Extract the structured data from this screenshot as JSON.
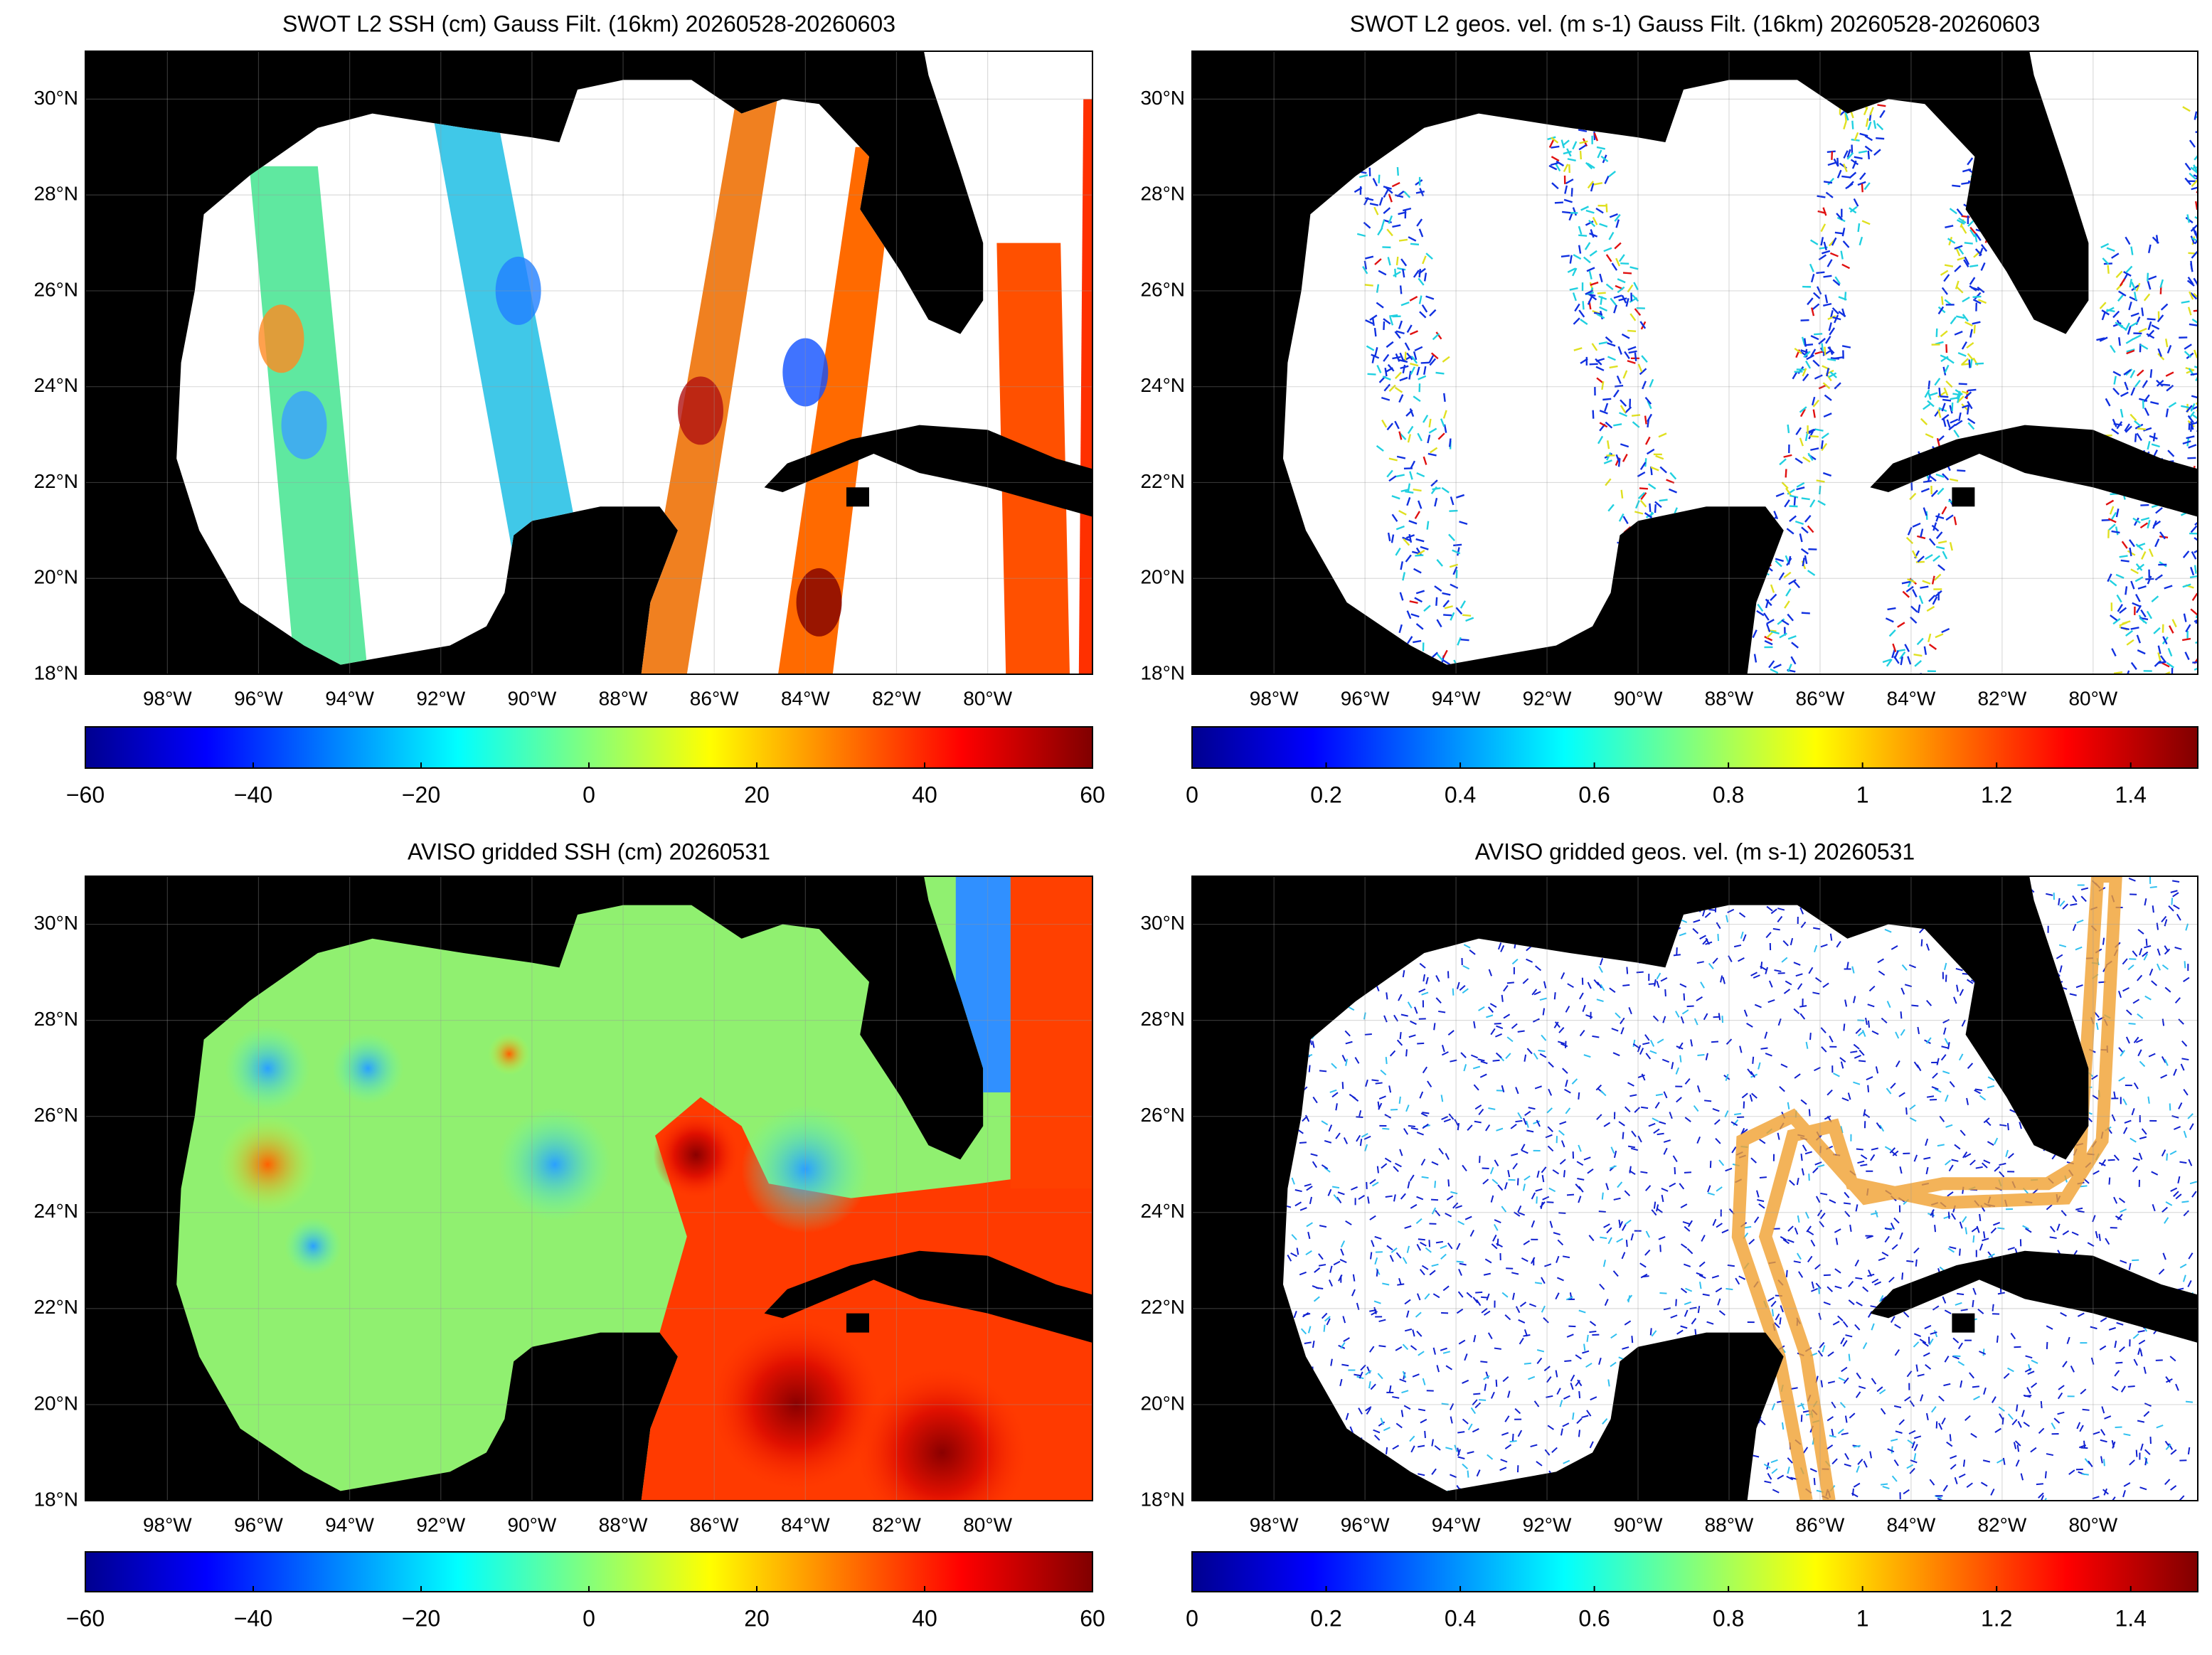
{
  "panels": [
    {
      "title": "SWOT L2 SSH (cm) Gauss Filt. (16km) 20260528-20260603",
      "xlim": [
        -99.8,
        -77.7
      ],
      "ylim": [
        18,
        31
      ],
      "yticks": [
        {
          "value": 18,
          "label": "18°N"
        },
        {
          "value": 20,
          "label": "20°N"
        },
        {
          "value": 22,
          "label": "22°N"
        },
        {
          "value": 24,
          "label": "24°N"
        },
        {
          "value": 26,
          "label": "26°N"
        },
        {
          "value": 28,
          "label": "28°N"
        },
        {
          "value": 30,
          "label": "30°N"
        }
      ],
      "xticks": [
        {
          "value": -98,
          "label": "98°W"
        },
        {
          "value": -96,
          "label": "96°W"
        },
        {
          "value": -94,
          "label": "94°W"
        },
        {
          "value": -92,
          "label": "92°W"
        },
        {
          "value": -90,
          "label": "90°W"
        },
        {
          "value": -88,
          "label": "88°W"
        },
        {
          "value": -86,
          "label": "86°W"
        },
        {
          "value": -84,
          "label": "84°W"
        },
        {
          "value": -82,
          "label": "82°W"
        },
        {
          "value": -80,
          "label": "80°W"
        }
      ],
      "colorbar": {
        "lim": [
          -60,
          60
        ],
        "ticks": [
          {
            "value": -60,
            "label": "−60"
          },
          {
            "value": -40,
            "label": "−40"
          },
          {
            "value": -20,
            "label": "−20"
          },
          0,
          20,
          40,
          60
        ]
      }
    },
    {
      "title": "SWOT L2 geos. vel. (m s-1) Gauss Filt. (16km) 20260528-20260603",
      "xlim": [
        -99.8,
        -77.7
      ],
      "ylim": [
        18,
        31
      ],
      "yticks": [
        {
          "value": 18,
          "label": "18°N"
        },
        {
          "value": 20,
          "label": "20°N"
        },
        {
          "value": 22,
          "label": "22°N"
        },
        {
          "value": 24,
          "label": "24°N"
        },
        {
          "value": 26,
          "label": "26°N"
        },
        {
          "value": 28,
          "label": "28°N"
        },
        {
          "value": 30,
          "label": "30°N"
        }
      ],
      "xticks": [
        {
          "value": -98,
          "label": "98°W"
        },
        {
          "value": -96,
          "label": "96°W"
        },
        {
          "value": -94,
          "label": "94°W"
        },
        {
          "value": -92,
          "label": "92°W"
        },
        {
          "value": -90,
          "label": "90°W"
        },
        {
          "value": -88,
          "label": "88°W"
        },
        {
          "value": -86,
          "label": "86°W"
        },
        {
          "value": -84,
          "label": "84°W"
        },
        {
          "value": -82,
          "label": "82°W"
        },
        {
          "value": -80,
          "label": "80°W"
        }
      ],
      "colorbar": {
        "lim": [
          0,
          1.5
        ],
        "ticks": [
          0,
          0.2,
          0.4,
          0.6,
          0.8,
          1,
          1.2,
          1.4
        ]
      }
    },
    {
      "title": "AVISO gridded SSH (cm) 20260531",
      "xlim": [
        -99.8,
        -77.7
      ],
      "ylim": [
        18,
        31
      ],
      "yticks": [
        {
          "value": 18,
          "label": "18°N"
        },
        {
          "value": 20,
          "label": "20°N"
        },
        {
          "value": 22,
          "label": "22°N"
        },
        {
          "value": 24,
          "label": "24°N"
        },
        {
          "value": 26,
          "label": "26°N"
        },
        {
          "value": 28,
          "label": "28°N"
        },
        {
          "value": 30,
          "label": "30°N"
        }
      ],
      "xticks": [
        {
          "value": -98,
          "label": "98°W"
        },
        {
          "value": -96,
          "label": "96°W"
        },
        {
          "value": -94,
          "label": "94°W"
        },
        {
          "value": -92,
          "label": "92°W"
        },
        {
          "value": -90,
          "label": "90°W"
        },
        {
          "value": -88,
          "label": "88°W"
        },
        {
          "value": -86,
          "label": "86°W"
        },
        {
          "value": -84,
          "label": "84°W"
        },
        {
          "value": -82,
          "label": "82°W"
        },
        {
          "value": -80,
          "label": "80°W"
        }
      ],
      "colorbar": {
        "lim": [
          -60,
          60
        ],
        "ticks": [
          {
            "value": -60,
            "label": "−60"
          },
          {
            "value": -40,
            "label": "−40"
          },
          {
            "value": -20,
            "label": "−20"
          },
          0,
          20,
          40,
          60
        ]
      }
    },
    {
      "title": "AVISO gridded geos. vel. (m s-1)  20260531",
      "xlim": [
        -99.8,
        -77.7
      ],
      "ylim": [
        18,
        31
      ],
      "yticks": [
        {
          "value": 18,
          "label": "18°N"
        },
        {
          "value": 20,
          "label": "20°N"
        },
        {
          "value": 22,
          "label": "22°N"
        },
        {
          "value": 24,
          "label": "24°N"
        },
        {
          "value": 26,
          "label": "26°N"
        },
        {
          "value": 28,
          "label": "28°N"
        },
        {
          "value": 30,
          "label": "30°N"
        }
      ],
      "xticks": [
        {
          "value": -98,
          "label": "98°W"
        },
        {
          "value": -96,
          "label": "96°W"
        },
        {
          "value": -94,
          "label": "94°W"
        },
        {
          "value": -92,
          "label": "92°W"
        },
        {
          "value": -90,
          "label": "90°W"
        },
        {
          "value": -88,
          "label": "88°W"
        },
        {
          "value": -86,
          "label": "86°W"
        },
        {
          "value": -84,
          "label": "84°W"
        },
        {
          "value": -82,
          "label": "82°W"
        },
        {
          "value": -80,
          "label": "80°W"
        }
      ],
      "colorbar": {
        "lim": [
          0,
          1.5
        ],
        "ticks": [
          0,
          0.2,
          0.4,
          0.6,
          0.8,
          1,
          1.2,
          1.4
        ]
      }
    }
  ]
}
